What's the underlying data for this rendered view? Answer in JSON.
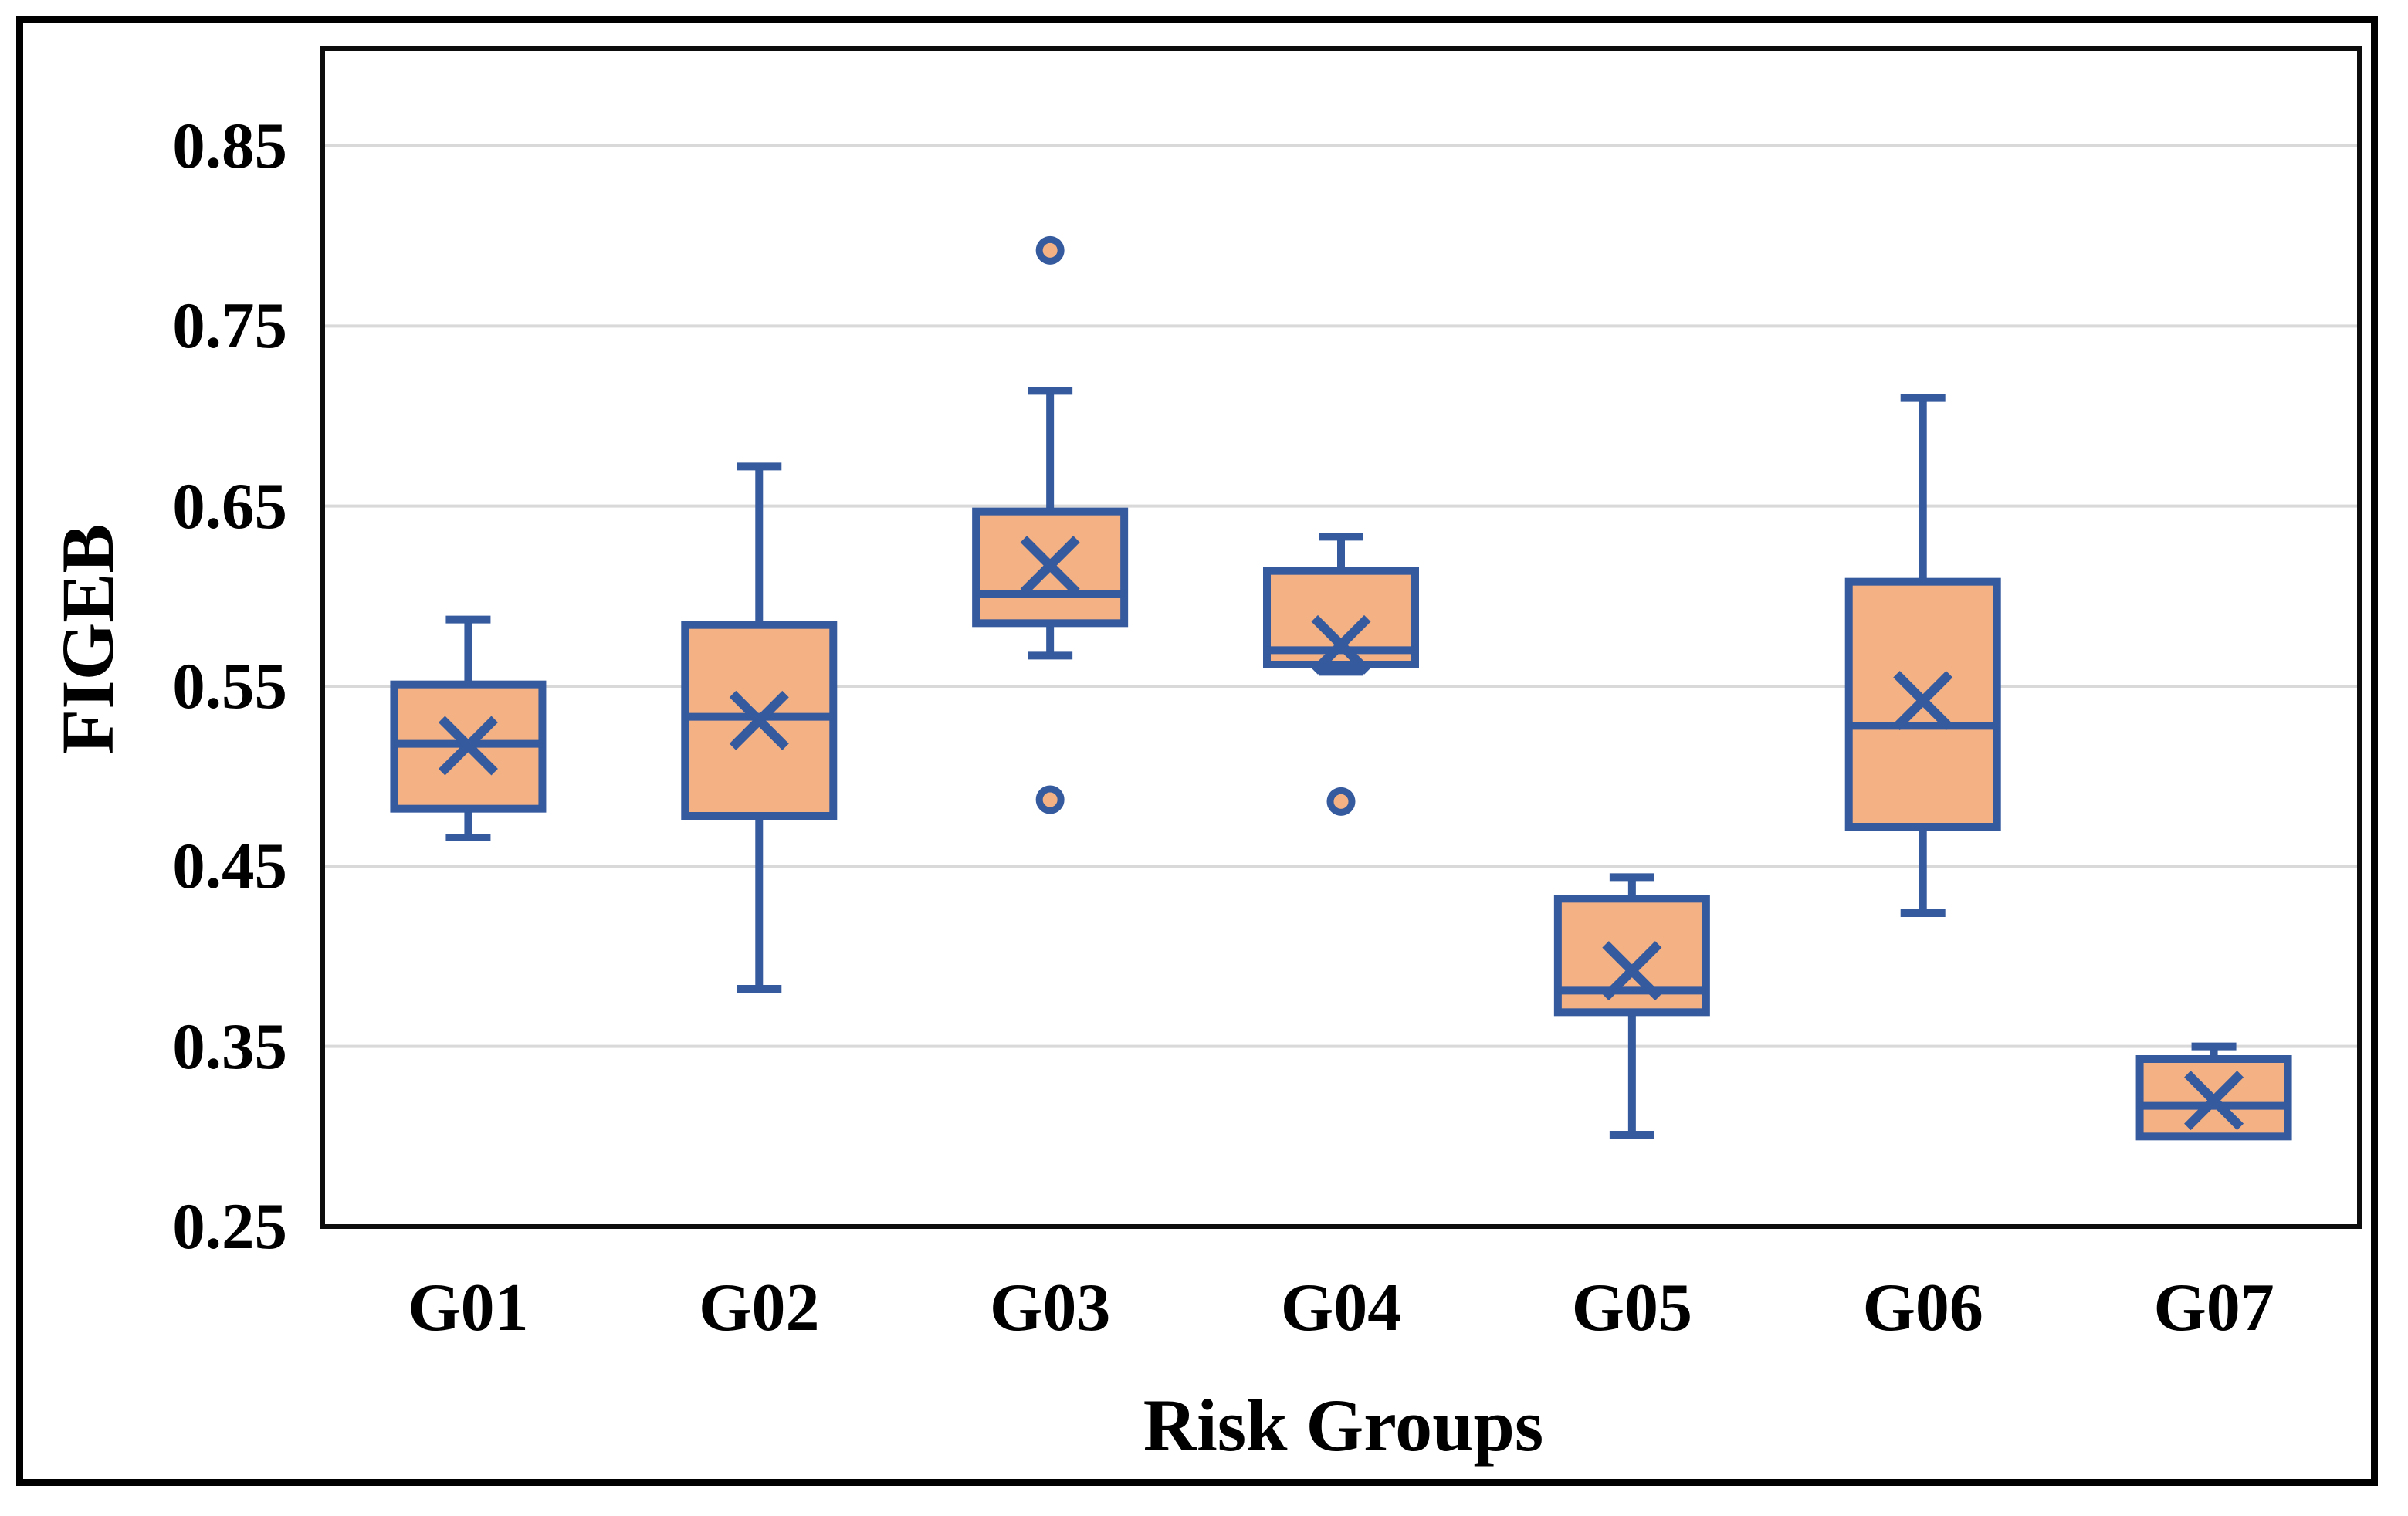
{
  "figure": {
    "kind": "excel-style-boxplot-figure",
    "background": "#FFFFFF",
    "border_color": "#000000"
  },
  "style": {
    "box_fill": "#F4B183",
    "box_stroke": "#355A9E",
    "gridline_color": "#D9D9D9",
    "plot_frame_color": "#0D0D0D",
    "text_color": "#000000"
  },
  "y_axis": {
    "title": "FIGEB",
    "ticks": [
      {
        "label": "0.85",
        "value": 0.85
      },
      {
        "label": "0.75",
        "value": 0.75
      },
      {
        "label": "0.65",
        "value": 0.65
      },
      {
        "label": "0.55",
        "value": 0.55
      },
      {
        "label": "0.45",
        "value": 0.45
      },
      {
        "label": "0.35",
        "value": 0.35
      },
      {
        "label": "0.25",
        "value": 0.25
      }
    ]
  },
  "x_axis": {
    "title": "Risk Groups",
    "categories": [
      "G01",
      "G02",
      "G03",
      "G04",
      "G05",
      "G06",
      "G07"
    ]
  },
  "chart_data": {
    "type": "boxplot",
    "title": "",
    "xlabel": "Risk Groups",
    "ylabel": "FIGEB",
    "ylim": [
      0.25,
      0.904
    ],
    "grid": "horizontal",
    "categories": [
      "G01",
      "G02",
      "G03",
      "G04",
      "G05",
      "G06",
      "G07"
    ],
    "series": [
      {
        "name": "G01",
        "min": 0.466,
        "q1": 0.482,
        "median": 0.518,
        "mean": 0.517,
        "q3": 0.551,
        "max": 0.587,
        "outliers": []
      },
      {
        "name": "G02",
        "min": 0.382,
        "q1": 0.478,
        "median": 0.533,
        "mean": 0.531,
        "q3": 0.584,
        "max": 0.672,
        "outliers": []
      },
      {
        "name": "G03",
        "min": 0.567,
        "q1": 0.585,
        "median": 0.601,
        "mean": 0.617,
        "q3": 0.647,
        "max": 0.714,
        "outliers": [
          0.792,
          0.487
        ]
      },
      {
        "name": "G04",
        "min": 0.558,
        "q1": 0.562,
        "median": 0.57,
        "mean": 0.573,
        "q3": 0.614,
        "max": 0.633,
        "outliers": [
          0.486
        ]
      },
      {
        "name": "G05",
        "min": 0.301,
        "q1": 0.369,
        "median": 0.381,
        "mean": 0.392,
        "q3": 0.432,
        "max": 0.444,
        "outliers": []
      },
      {
        "name": "G06",
        "min": 0.424,
        "q1": 0.472,
        "median": 0.528,
        "mean": 0.542,
        "q3": 0.608,
        "max": 0.71,
        "outliers": []
      },
      {
        "name": "G07",
        "min": 0.3,
        "q1": 0.3,
        "median": 0.317,
        "mean": 0.32,
        "q3": 0.343,
        "max": 0.35,
        "outliers": []
      }
    ]
  }
}
